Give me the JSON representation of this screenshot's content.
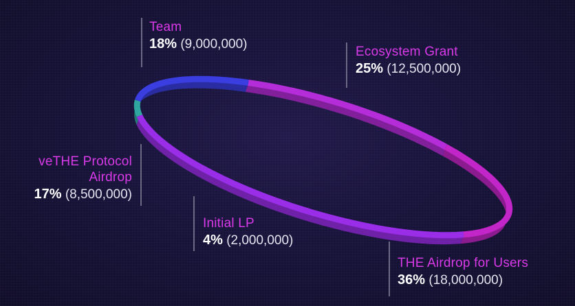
{
  "chart_data": {
    "type": "pie",
    "style": "ring",
    "slices": [
      {
        "name": "Team",
        "percent": 18,
        "amount": "(9,000,000)",
        "color": "#b52dd9"
      },
      {
        "name": "Ecosystem Grant",
        "percent": 25,
        "amount": "(12,500,000)",
        "color": "#c226c8"
      },
      {
        "name": "THE Airdrop for Users",
        "percent": 36,
        "amount": "(18,000,000)",
        "color": "#9a2ee8"
      },
      {
        "name": "Initial LP",
        "percent": 4,
        "amount": "(2,000,000)",
        "color": "#2fa6a0"
      },
      {
        "name": "veTHE Protocol Airdrop",
        "percent": 17,
        "amount": "(8,500,000)",
        "color": "#3a3ee0"
      }
    ]
  },
  "labels": {
    "team": {
      "name": "Team",
      "pct": "18%",
      "amt": "(9,000,000)"
    },
    "eco": {
      "name": "Ecosystem Grant",
      "pct": "25%",
      "amt": "(12,500,000)"
    },
    "vethe": {
      "name_line1": "veTHE Protocol",
      "name_line2": "Airdrop",
      "pct": "17%",
      "amt": "(8,500,000)"
    },
    "lp": {
      "name": "Initial LP",
      "pct": "4%",
      "amt": "(2,000,000)"
    },
    "users": {
      "name": "THE Airdrop for Users",
      "pct": "36%",
      "amt": "(18,000,000)"
    }
  },
  "colors": {
    "label_accent": "#d93ae8",
    "background": "#13102e"
  }
}
